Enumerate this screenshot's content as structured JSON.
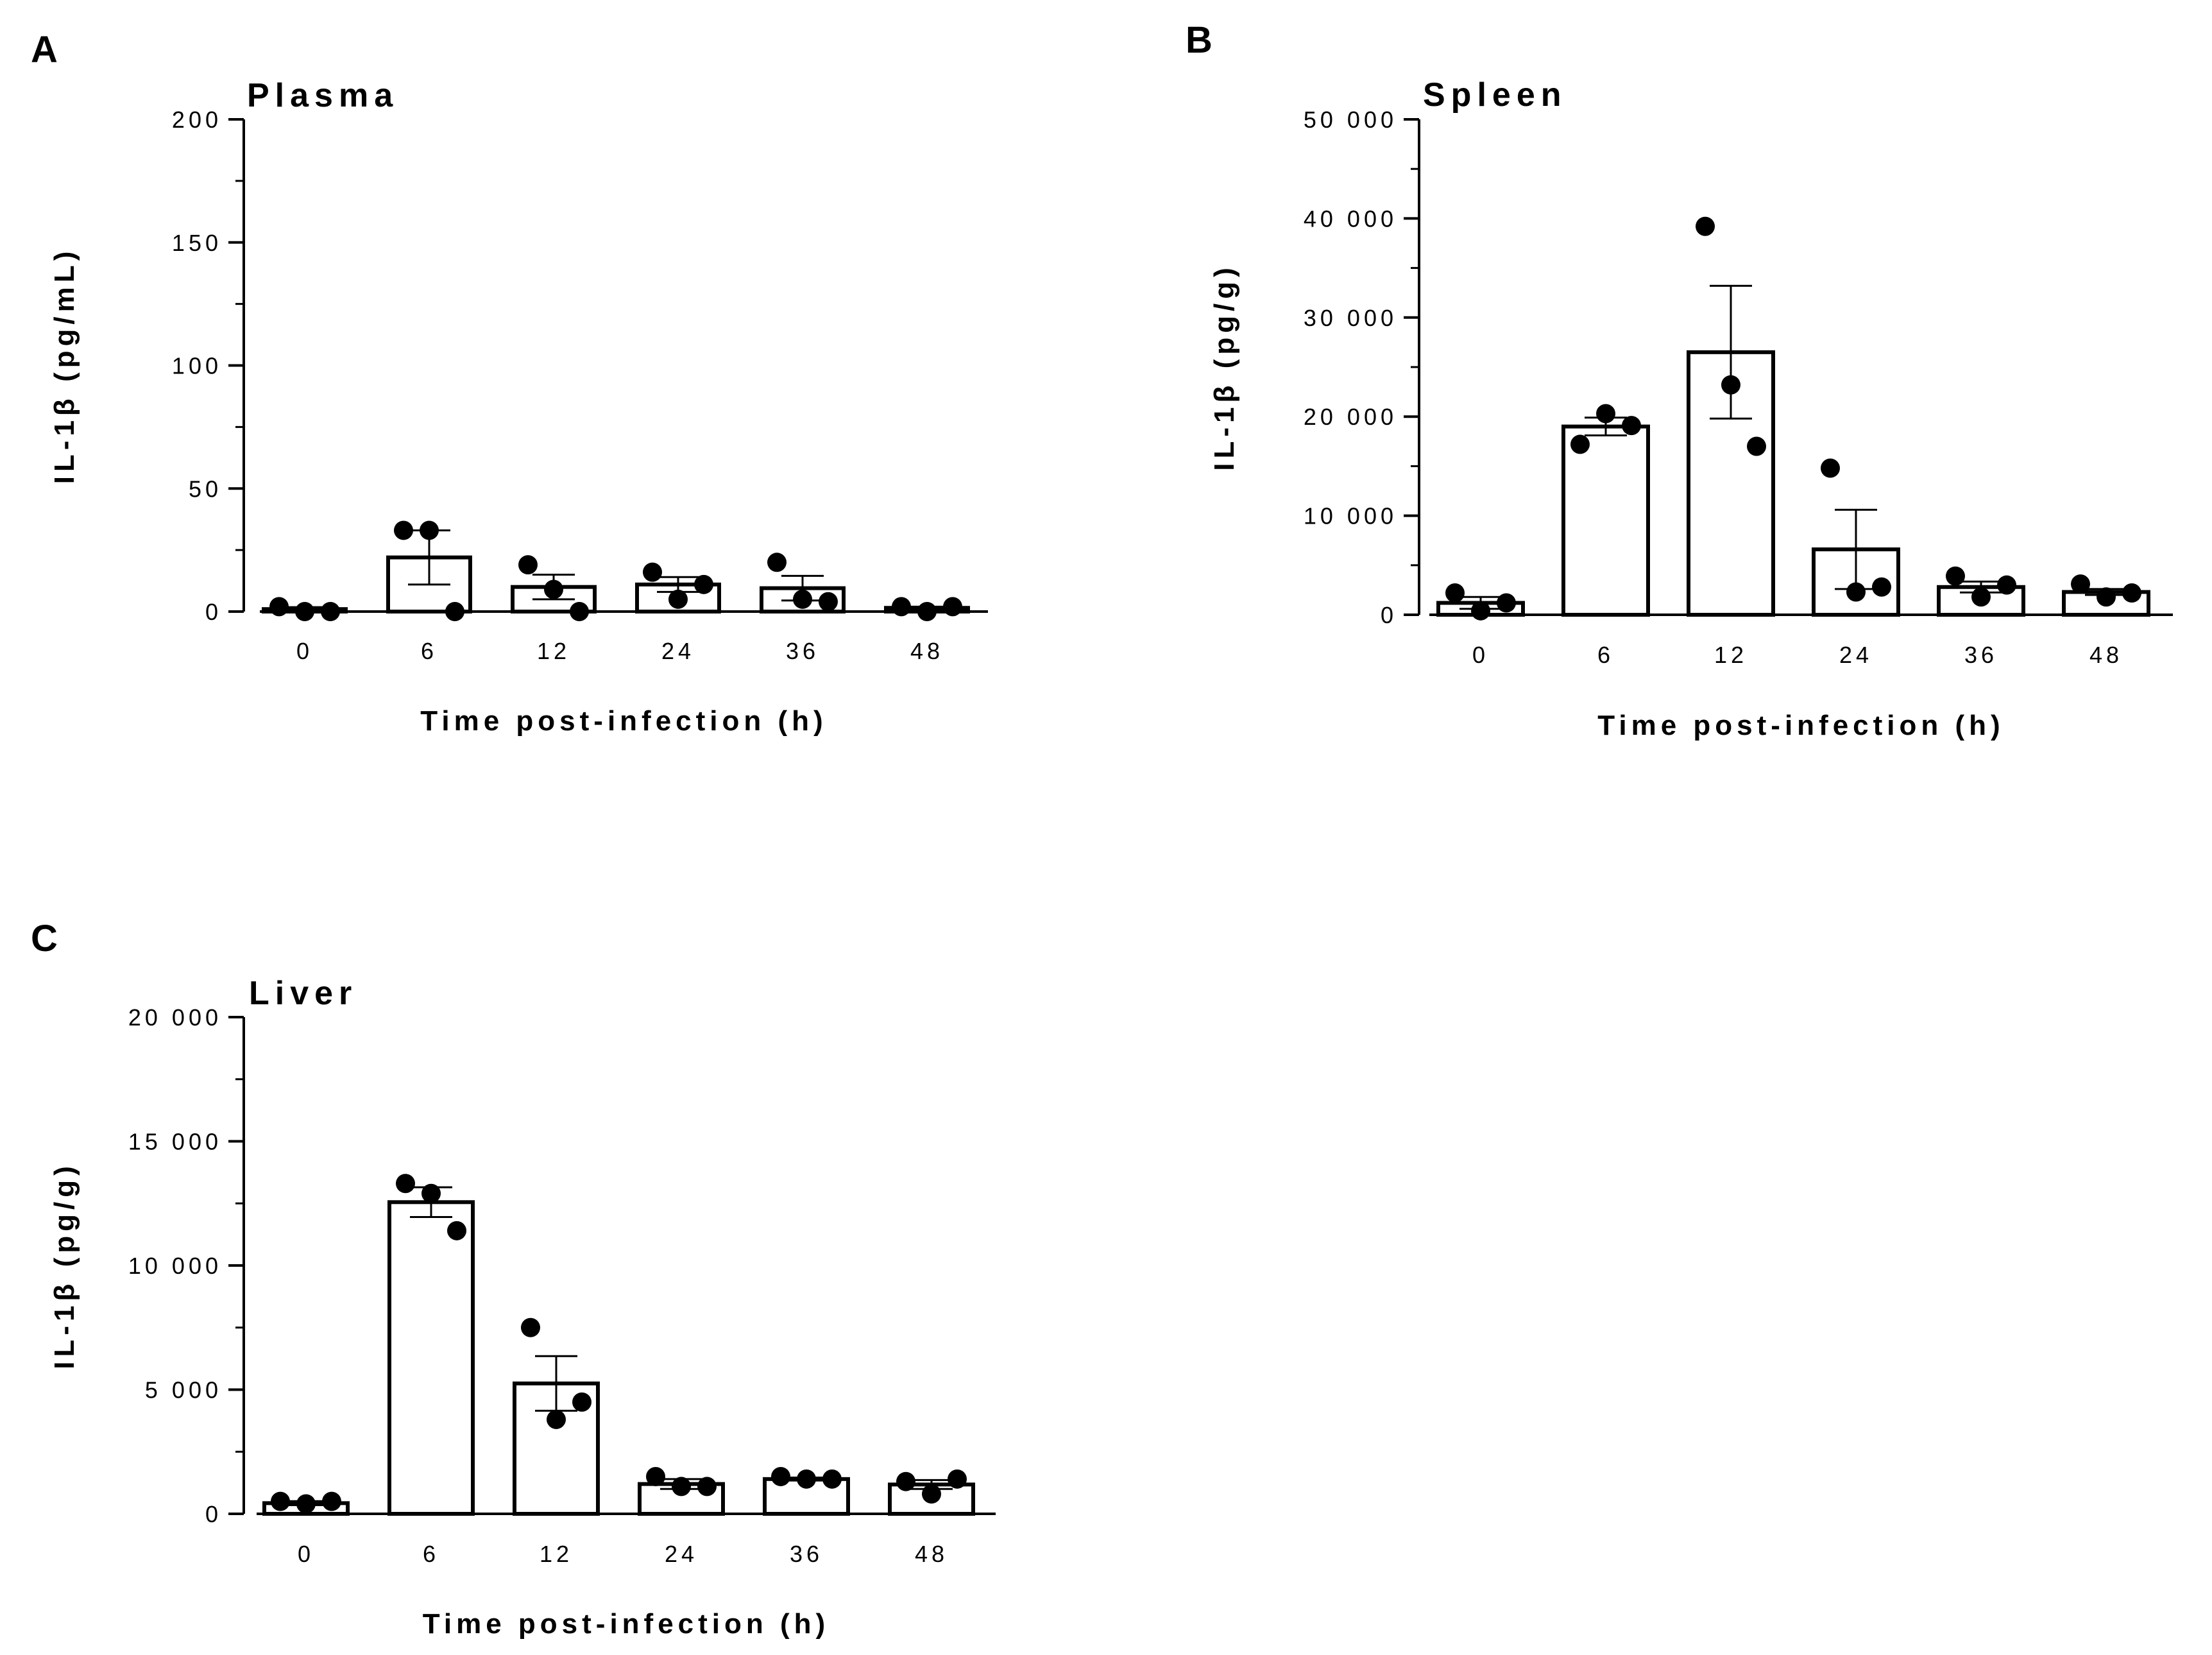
{
  "figure": {
    "panels": [
      "A",
      "B",
      "C"
    ]
  },
  "chart_data": [
    {
      "type": "bar",
      "panel": "A",
      "title": "Plasma",
      "xlabel": "Time post-infection (h)",
      "ylabel": "IL-1β (pg/mL)",
      "categories": [
        "0",
        "6",
        "12",
        "24",
        "36",
        "48"
      ],
      "values": [
        1,
        22,
        10,
        11,
        9.5,
        1.5
      ],
      "errors": [
        0.8,
        11,
        5,
        3,
        5,
        0.5
      ],
      "points": [
        [
          2,
          0,
          0
        ],
        [
          33,
          33,
          0
        ],
        [
          19,
          9,
          0
        ],
        [
          16,
          5,
          11
        ],
        [
          20,
          5,
          4
        ],
        [
          2,
          0,
          2
        ]
      ],
      "ylim": [
        0,
        200
      ],
      "yticks": [
        0,
        50,
        100,
        150,
        200
      ],
      "ytick_labels": [
        "0",
        "50",
        "100",
        "150",
        "200"
      ],
      "minor_ticks": 1
    },
    {
      "type": "bar",
      "panel": "B",
      "title": "Spleen",
      "xlabel": "Time post-infection (h)",
      "ylabel": "IL-1β (pg/g)",
      "categories": [
        "0",
        "6",
        "12",
        "24",
        "36",
        "48"
      ],
      "values": [
        1200,
        19000,
        26500,
        6600,
        2800,
        2300
      ],
      "errors": [
        600,
        900,
        6700,
        4000,
        550,
        300
      ],
      "points": [
        [
          2200,
          400,
          1200
        ],
        [
          17200,
          20300,
          19100
        ],
        [
          39200,
          23200,
          17000
        ],
        [
          14800,
          2300,
          2800
        ],
        [
          3900,
          1800,
          3000
        ],
        [
          3100,
          1800,
          2200
        ]
      ],
      "ylim": [
        0,
        50000
      ],
      "yticks": [
        0,
        10000,
        20000,
        30000,
        40000,
        50000
      ],
      "ytick_labels": [
        "0",
        "10 000",
        "20 000",
        "30 000",
        "40 000",
        "50 000"
      ],
      "minor_ticks": 1
    },
    {
      "type": "bar",
      "panel": "C",
      "title": "Liver",
      "xlabel": "Time post-infection (h)",
      "ylabel": "IL-1β (pg/g)",
      "categories": [
        "0",
        "6",
        "12",
        "24",
        "36",
        "48"
      ],
      "values": [
        430,
        12550,
        5250,
        1200,
        1400,
        1180
      ],
      "errors": [
        80,
        600,
        1100,
        200,
        60,
        180
      ],
      "points": [
        [
          500,
          400,
          500
        ],
        [
          13300,
          12900,
          11400
        ],
        [
          7500,
          3800,
          4500
        ],
        [
          1500,
          1100,
          1100
        ],
        [
          1500,
          1400,
          1400
        ],
        [
          1300,
          800,
          1400
        ]
      ],
      "ylim": [
        0,
        20000
      ],
      "yticks": [
        0,
        5000,
        10000,
        15000,
        20000
      ],
      "ytick_labels": [
        "0",
        "5 000",
        "10 000",
        "15 000",
        "20 000"
      ],
      "minor_ticks": 1
    }
  ]
}
